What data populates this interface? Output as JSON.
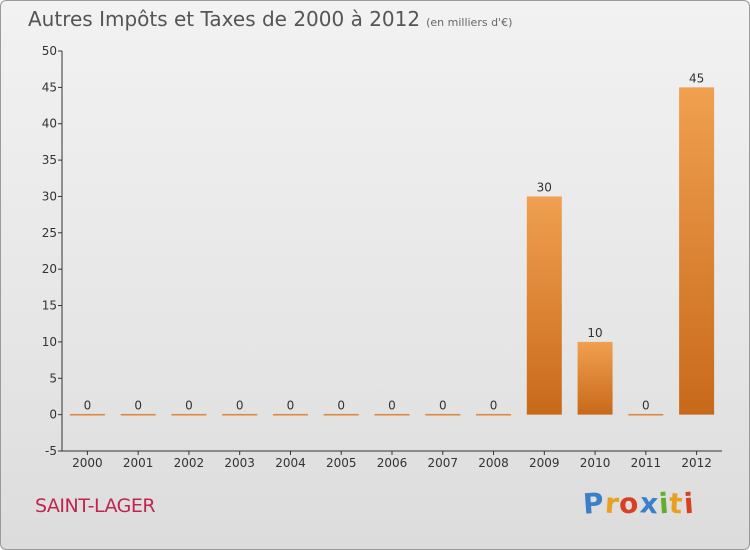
{
  "chart_data": {
    "type": "bar",
    "title": "Autres Impôts et Taxes de 2000 à 2012",
    "subtitle": "(en milliers d'€)",
    "categories": [
      "2000",
      "2001",
      "2002",
      "2003",
      "2004",
      "2005",
      "2006",
      "2007",
      "2008",
      "2009",
      "2010",
      "2011",
      "2012"
    ],
    "values": [
      0,
      0,
      0,
      0,
      0,
      0,
      0,
      0,
      0,
      30,
      10,
      0,
      45
    ],
    "ylim": [
      -5,
      50
    ],
    "yticks": [
      -5,
      0,
      5,
      10,
      15,
      20,
      25,
      30,
      35,
      40,
      45,
      50
    ],
    "grid": false,
    "bar_color": "#f0a050",
    "bar_color_dark": "#c8691a"
  },
  "footer": {
    "place": "SAINT-LAGER",
    "logo_letters": [
      "P",
      "r",
      "o",
      "x",
      "i",
      "t",
      "i"
    ],
    "logo_colors": [
      "#3a7fc8",
      "#e8a020",
      "#d84020",
      "#3a7fc8",
      "#60b030",
      "#e8a020",
      "#d84020"
    ]
  }
}
